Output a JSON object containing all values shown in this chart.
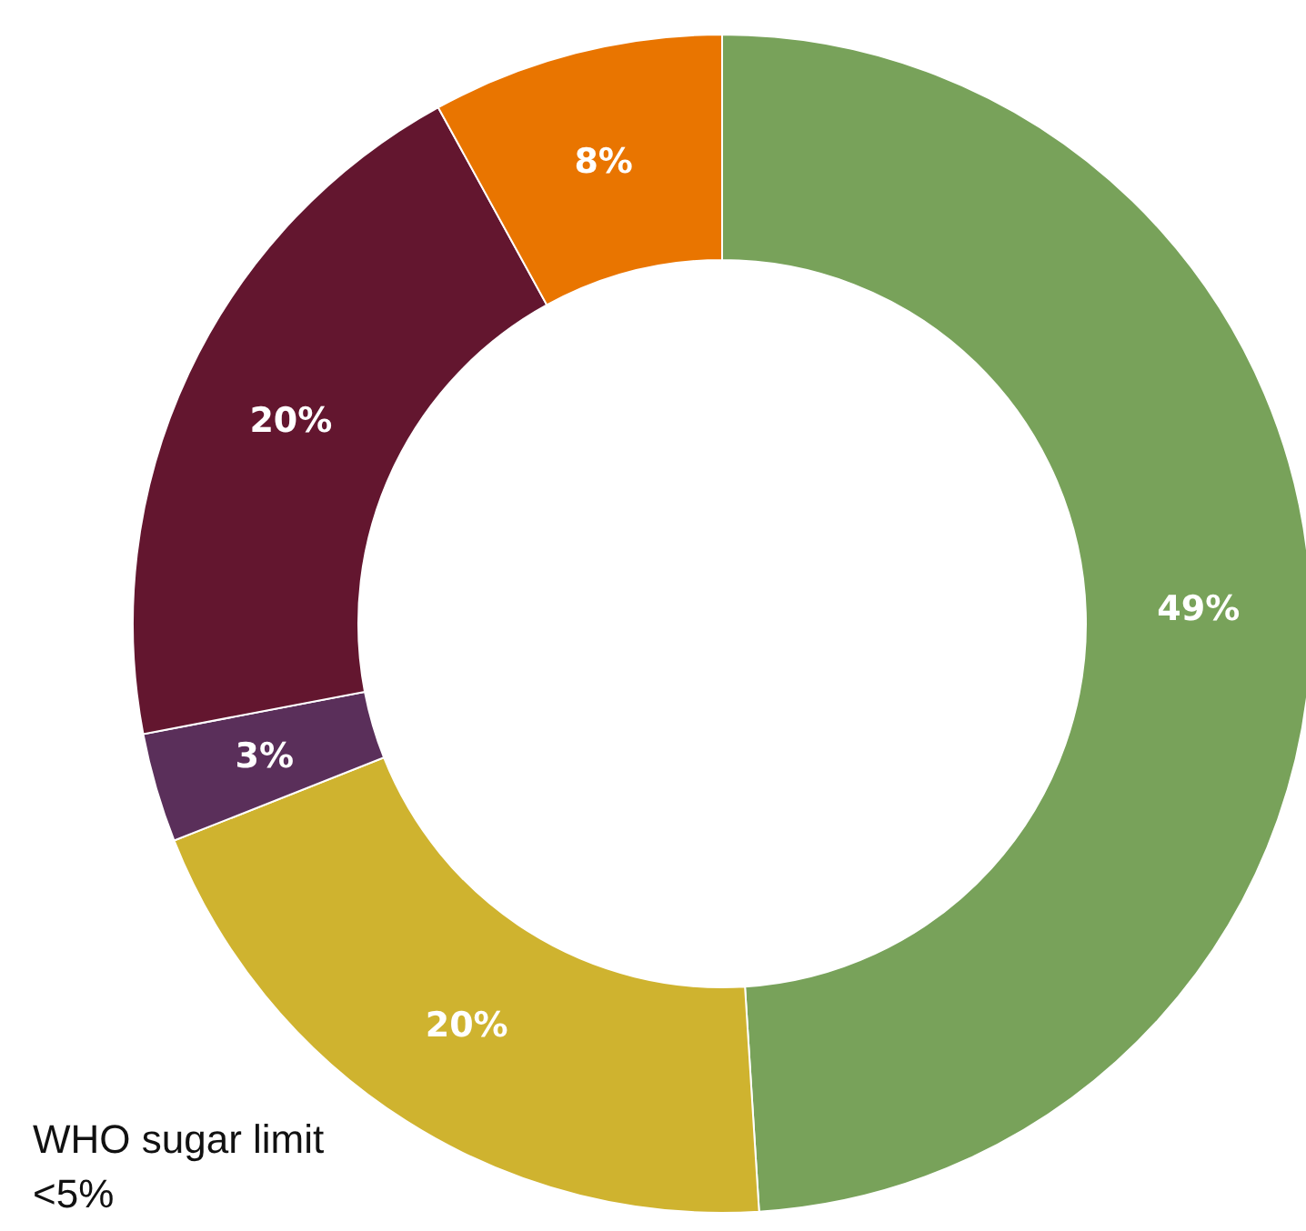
{
  "chart_data": {
    "type": "donut",
    "categories": [
      null,
      null,
      null,
      null,
      null
    ],
    "values": [
      49,
      20,
      3,
      20,
      8
    ],
    "colors": [
      "#78a25a",
      "#cfb32f",
      "#5a2f5a",
      "#63162f",
      "#e97500"
    ],
    "value_labels": [
      "49%",
      "20%",
      "3%",
      "20%",
      "8%"
    ],
    "annotations": [
      "WHO sugar limit <5%"
    ],
    "legend": false
  }
}
